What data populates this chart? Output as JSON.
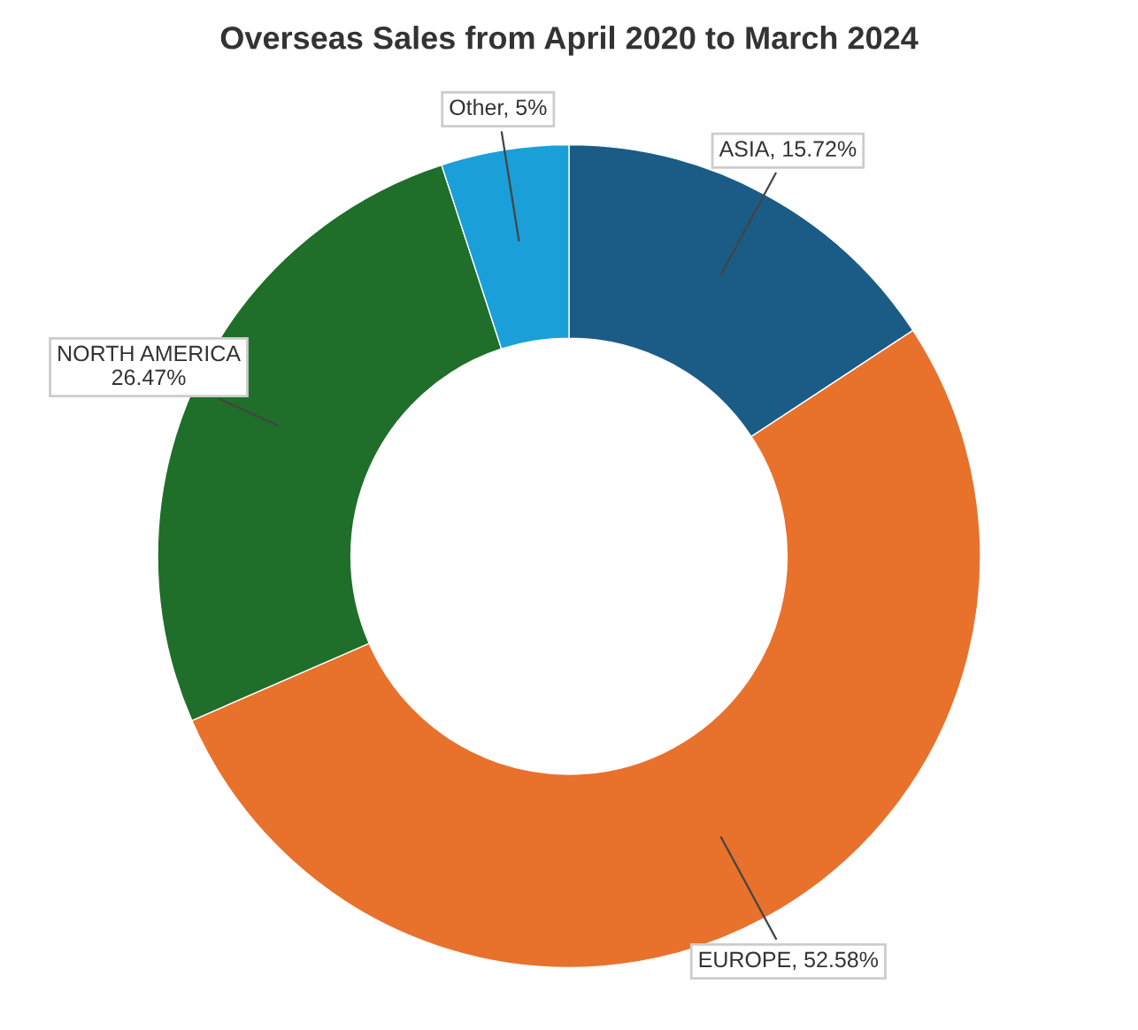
{
  "chart_data": {
    "type": "donut",
    "title": "Overseas Sales from April 2020 to March 2024",
    "categories": [
      "ASIA",
      "EUROPE",
      "NORTH AMERICA",
      "Other"
    ],
    "values": [
      15.72,
      52.58,
      26.47,
      5
    ],
    "value_labels": [
      "15.72%",
      "52.58%",
      "26.47%",
      "5%"
    ],
    "colors": [
      "#1b5c86",
      "#e8712c",
      "#1f6e2a",
      "#1a9fd9"
    ],
    "legend": false
  }
}
